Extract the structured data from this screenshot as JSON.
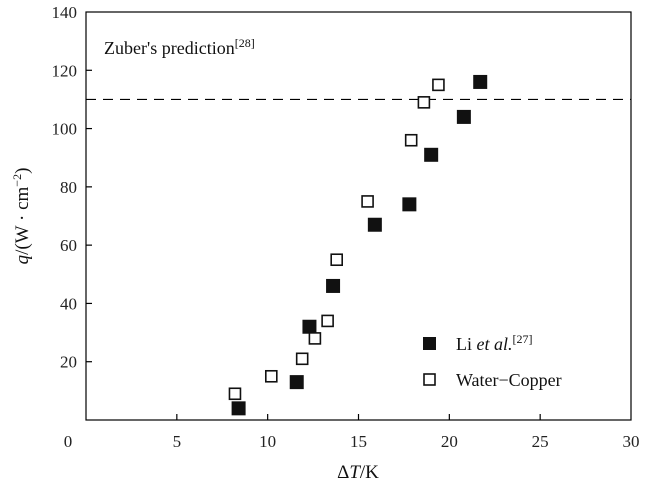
{
  "chart_data": {
    "type": "scatter",
    "xlabel": "ΔT/K",
    "ylabel": "q/(W · cm⁻²)",
    "xlim": [
      0,
      30
    ],
    "ylim": [
      0,
      140
    ],
    "xticks": [
      0,
      5,
      10,
      15,
      20,
      25,
      30
    ],
    "yticks": [
      20,
      40,
      60,
      80,
      100,
      120,
      140
    ],
    "grid": false,
    "legend_position": "bottom-right",
    "reference_line": {
      "y": 110,
      "style": "dashed",
      "label": "Zuber's prediction",
      "label_ref": "[28]"
    },
    "series": [
      {
        "name": "Li et al.",
        "name_ref": "[27]",
        "marker": "filled-square",
        "points": [
          {
            "x": 8.4,
            "y": 4
          },
          {
            "x": 11.6,
            "y": 13
          },
          {
            "x": 12.3,
            "y": 32
          },
          {
            "x": 13.6,
            "y": 46
          },
          {
            "x": 15.9,
            "y": 67
          },
          {
            "x": 17.8,
            "y": 74
          },
          {
            "x": 19.0,
            "y": 91
          },
          {
            "x": 20.8,
            "y": 104
          },
          {
            "x": 21.7,
            "y": 116
          }
        ]
      },
      {
        "name": "Water−Copper",
        "marker": "open-square",
        "points": [
          {
            "x": 8.2,
            "y": 9
          },
          {
            "x": 10.2,
            "y": 15
          },
          {
            "x": 11.9,
            "y": 21
          },
          {
            "x": 12.6,
            "y": 28
          },
          {
            "x": 13.3,
            "y": 34
          },
          {
            "x": 13.8,
            "y": 55
          },
          {
            "x": 15.5,
            "y": 75
          },
          {
            "x": 17.9,
            "y": 96
          },
          {
            "x": 18.6,
            "y": 109
          },
          {
            "x": 19.4,
            "y": 115
          }
        ]
      }
    ]
  },
  "text": {
    "ylabel_q": "q",
    "ylabel_rest": "/(W · cm",
    "ylabel_exp": "−2",
    "ylabel_close": ")",
    "xlabel_delta": "Δ",
    "xlabel_T": "T",
    "xlabel_rest": "/K",
    "zuber_label": "Zuber's prediction",
    "zuber_ref": "[28]",
    "legend_li_a": "Li ",
    "legend_li_b": "et al.",
    "legend_li_ref": "[27]",
    "legend_water": "Water−Copper"
  }
}
